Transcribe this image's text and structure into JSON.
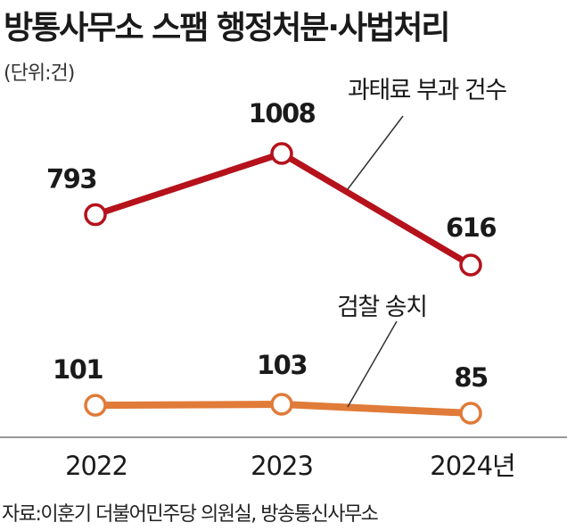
{
  "title": "방통사무소 스팸 행정처분·사법처리",
  "unit": "(단위:건)",
  "source": "자료:이훈기 더불어민주당 의원실, 방송통신사무소",
  "chart_data": {
    "type": "line",
    "categories": [
      "2022",
      "2023",
      "2024년"
    ],
    "series": [
      {
        "name": "과태료 부과 건수",
        "values": [
          793,
          1008,
          616
        ],
        "color": "#b5121b"
      },
      {
        "name": "검찰 송치",
        "values": [
          101,
          103,
          85
        ],
        "color": "#e07b39"
      }
    ],
    "data_labels": {
      "s0": [
        "793",
        "1008",
        "616"
      ],
      "s1": [
        "101",
        "103",
        "85"
      ]
    },
    "grid": false,
    "legend": "inline"
  }
}
